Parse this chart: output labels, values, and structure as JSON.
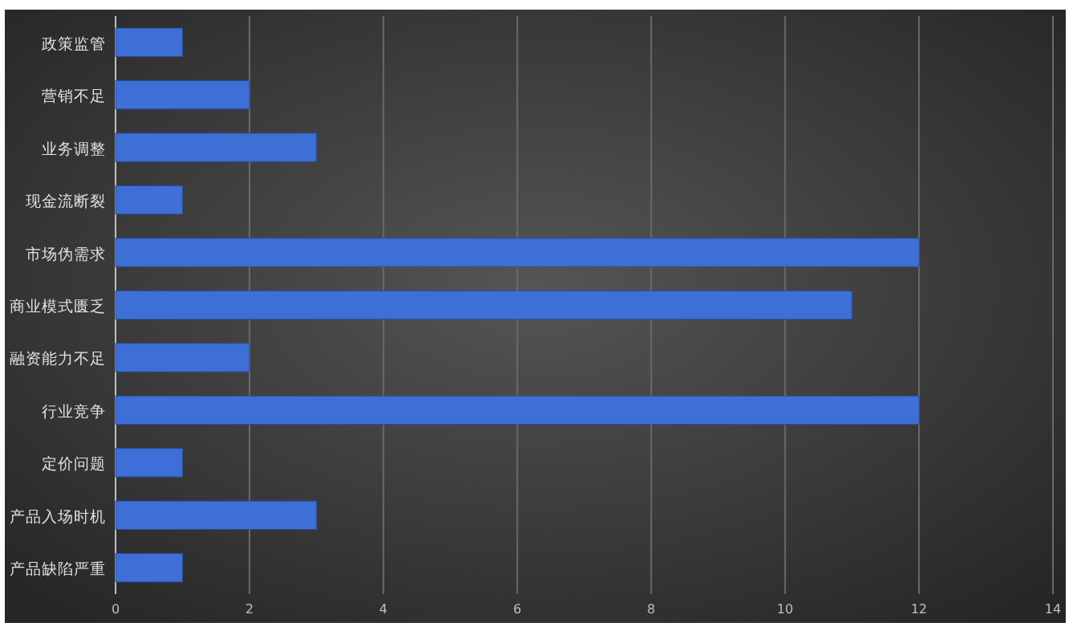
{
  "chart_data": {
    "type": "bar",
    "orientation": "horizontal",
    "categories": [
      "政策监管",
      "营销不足",
      "业务调整",
      "现金流断裂",
      "市场伪需求",
      "商业模式匮乏",
      "融资能力不足",
      "行业竞争",
      "定价问题",
      "产品入场时机",
      "产品缺陷严重"
    ],
    "values": [
      1,
      2,
      3,
      1,
      12,
      11,
      2,
      12,
      1,
      3,
      1
    ],
    "color": "#3d6fd6",
    "xlim": [
      0,
      14
    ],
    "xticks": [
      0,
      2,
      4,
      6,
      8,
      10,
      12,
      14
    ],
    "grid": "x"
  }
}
